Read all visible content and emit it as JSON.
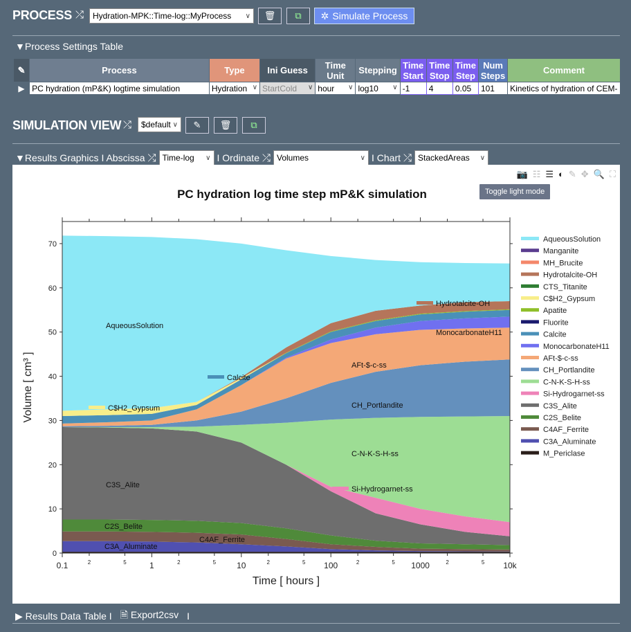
{
  "process": {
    "title": "PROCESS",
    "selected": "Hydration-MPK::Time-log::MyProcess",
    "simulate_label": "Simulate Process"
  },
  "settings": {
    "title": "Process Settings Table",
    "headers": [
      "Process",
      "Type",
      "Ini Guess",
      "Time Unit",
      "Stepping",
      "Time Start",
      "Time Stop",
      "Time Step",
      "Num Steps",
      "Comment"
    ],
    "header_colors": [
      "#6f7e90",
      "#e0957a",
      "#4a5966",
      "#6a7a8a",
      "#6a7a8a",
      "#7b5ef0",
      "#7b5ef0",
      "#7b5ef0",
      "#5a7ab8",
      "#8fbf80"
    ],
    "row": [
      "PC hydration (mP&K) logtime simulation",
      "Hydration",
      "StartCold",
      "hour",
      "log10",
      "-1",
      "4",
      "0.05",
      "101",
      "Kinetics of hydration of CEM-"
    ]
  },
  "view": {
    "title": "SIMULATION VIEW",
    "selected": "$default"
  },
  "graphics": {
    "title": "Results Graphics",
    "abscissa_label": "I Abscissa",
    "abscissa": "Time-log",
    "ordinate_label": "I Ordinate",
    "ordinate": "Volumes",
    "chart_label": "I Chart",
    "chart": "StackedAreas"
  },
  "modebar": {
    "icons": [
      "camera-icon",
      "list-unchecked-icon",
      "list-icon",
      "contrast-icon",
      "pencil-icon",
      "move-icon",
      "zoom-icon",
      "autoscale-icon"
    ],
    "tooltip": "Toggle light mode"
  },
  "footer": {
    "table_label": "Results Data Table I",
    "export_label": "Export2csv",
    "sep": "I"
  },
  "chart_data": {
    "type": "area",
    "stacked": true,
    "title": "PC hydration log time step mP&K simulation",
    "xlabel": "Time [ hours ]",
    "ylabel": "Volume [ cm³ ]",
    "xscale": "log",
    "xlim": [
      0.1,
      10000
    ],
    "ylim": [
      0,
      75
    ],
    "xticks": [
      0.1,
      1,
      10,
      100,
      1000,
      10000
    ],
    "xtick_labels": [
      "0.1",
      "1",
      "10",
      "100",
      "1000",
      "10k"
    ],
    "yticks": [
      0,
      10,
      20,
      30,
      40,
      50,
      60,
      70
    ],
    "grid": false,
    "legend": "right",
    "x": [
      0.1,
      0.316,
      1,
      3.16,
      10,
      31.6,
      100,
      316,
      1000,
      3162,
      10000
    ],
    "series": [
      {
        "name": "AqueousSolution",
        "color": "#8ce8f6",
        "values": [
          39.6,
          39.2,
          38.7,
          36.8,
          30.2,
          22,
          15.2,
          11.5,
          9.8,
          8.85,
          8.5
        ]
      },
      {
        "name": "Manganite",
        "color": "#5a3d8f",
        "values": [
          0,
          0,
          0,
          0,
          0,
          0,
          0,
          0,
          0,
          0,
          0
        ]
      },
      {
        "name": "MH_Brucite",
        "color": "#f4876a",
        "values": [
          0,
          0,
          0,
          0,
          0,
          0,
          0,
          0,
          0,
          0,
          0
        ]
      },
      {
        "name": "Hydrotalcite-OH",
        "color": "#b5755a",
        "values": [
          0,
          0,
          0,
          0,
          0.2,
          1.2,
          1.85,
          2.15,
          1.85,
          2.0,
          1.85
        ]
      },
      {
        "name": "CTS_Titanite",
        "color": "#2e7d32",
        "values": [
          0,
          0,
          0,
          0,
          0,
          0,
          0,
          0,
          0,
          0,
          0
        ]
      },
      {
        "name": "C$H2_Gypsum",
        "color": "#f8ee8a",
        "values": [
          1.2,
          1.3,
          1.3,
          0.7,
          0.3,
          0,
          0,
          0,
          0,
          0,
          0
        ]
      },
      {
        "name": "Apatite",
        "color": "#8fbf2a",
        "values": [
          0,
          0,
          0,
          0,
          0,
          0.1,
          0.15,
          0.15,
          0.15,
          0.15,
          0.15
        ]
      },
      {
        "name": "Fluorite",
        "color": "#1a1a6e",
        "values": [
          0,
          0,
          0,
          0,
          0,
          0,
          0,
          0,
          0,
          0,
          0
        ]
      },
      {
        "name": "Calcite",
        "color": "#4a90b8",
        "values": [
          1.7,
          1.6,
          1.5,
          1.0,
          1.3,
          1.0,
          1.7,
          1.5,
          1.5,
          1.5,
          1.5
        ]
      },
      {
        "name": "MonocarbonateH11",
        "color": "#7070f0",
        "values": [
          0,
          0,
          0,
          0,
          0,
          0.2,
          0.8,
          1.5,
          2.0,
          2.3,
          2.5
        ]
      },
      {
        "name": "AFt-$-c-ss",
        "color": "#f4a877",
        "values": [
          0.6,
          0.8,
          1.0,
          2.5,
          6.0,
          9.0,
          9.0,
          8.5,
          8.0,
          7.5,
          7.2
        ]
      },
      {
        "name": "CH_Portlandite",
        "color": "#6490bd",
        "values": [
          0.2,
          0.3,
          0.5,
          1.4,
          3.0,
          5.5,
          8.3,
          10.4,
          11.7,
          12.4,
          12.8
        ]
      },
      {
        "name": "C-N-K-S-H-ss",
        "color": "#9ddd94",
        "values": [
          0,
          0.1,
          0.3,
          1.1,
          4.0,
          9.5,
          15.2,
          18.1,
          20.8,
          22.6,
          24.0
        ]
      },
      {
        "name": "Si-Hydrogarnet-ss",
        "color": "#ee82b8",
        "values": [
          0,
          0,
          0,
          0,
          0,
          0,
          1.0,
          3.5,
          3.5,
          3.5,
          3.2
        ]
      },
      {
        "name": "C3S_Alite",
        "color": "#6e6e6e",
        "values": [
          20.9,
          20.8,
          20.7,
          20.2,
          18.2,
          14.4,
          10.0,
          6.2,
          4.3,
          2.8,
          2.0
        ]
      },
      {
        "name": "C2S_Belite",
        "color": "#4f8a3a",
        "values": [
          2.7,
          2.7,
          2.7,
          2.7,
          2.6,
          2.4,
          2.0,
          1.4,
          1.2,
          1.1,
          1.0
        ]
      },
      {
        "name": "C4AF_Ferrite",
        "color": "#7a5a50",
        "values": [
          2.2,
          2.2,
          2.2,
          2.2,
          2.2,
          1.7,
          1.1,
          0.8,
          0.55,
          0.5,
          0.45
        ]
      },
      {
        "name": "C3A_Aluminate",
        "color": "#5050b0",
        "values": [
          2.4,
          2.4,
          2.3,
          2.1,
          1.7,
          1.2,
          0.6,
          0.3,
          0.15,
          0.1,
          0.05
        ]
      },
      {
        "name": "M_Periclase",
        "color": "#2a1e1a",
        "values": [
          0.3,
          0.3,
          0.3,
          0.3,
          0.3,
          0.3,
          0.3,
          0.3,
          0.3,
          0.3,
          0.3
        ]
      }
    ]
  }
}
